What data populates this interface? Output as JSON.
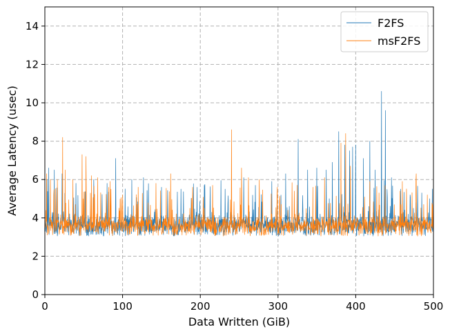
{
  "chart_data": {
    "type": "line",
    "xlabel": "Data Written (GiB)",
    "ylabel": "Average Latency (usec)",
    "xlim": [
      0,
      500
    ],
    "ylim": [
      0,
      15
    ],
    "xticks": [
      0,
      100,
      200,
      300,
      400,
      500
    ],
    "yticks": [
      0,
      2,
      4,
      6,
      8,
      10,
      12,
      14
    ],
    "xtick_labels": [
      "0",
      "100",
      "200",
      "300",
      "400",
      "500"
    ],
    "ytick_labels": [
      "0",
      "2",
      "4",
      "6",
      "8",
      "10",
      "12",
      "14"
    ],
    "grid": true,
    "grid_style": "dashed",
    "legend_position": "top-right",
    "series": [
      {
        "name": "F2FS",
        "color": "#1f77b4",
        "x_range": [
          0,
          500
        ],
        "baseline": [
          3.0,
          4.8
        ],
        "spikes": [
          [
            3,
            6.0
          ],
          [
            5,
            6.6
          ],
          [
            12,
            6.5
          ],
          [
            22,
            6.3
          ],
          [
            40,
            5.8
          ],
          [
            63,
            6.0
          ],
          [
            80,
            5.8
          ],
          [
            91,
            7.1
          ],
          [
            112,
            6.0
          ],
          [
            127,
            6.1
          ],
          [
            150,
            5.6
          ],
          [
            175,
            5.5
          ],
          [
            205,
            5.7
          ],
          [
            232,
            5.5
          ],
          [
            256,
            6.1
          ],
          [
            271,
            5.7
          ],
          [
            292,
            5.9
          ],
          [
            310,
            6.3
          ],
          [
            326,
            8.1
          ],
          [
            338,
            6.5
          ],
          [
            350,
            6.6
          ],
          [
            362,
            6.5
          ],
          [
            370,
            6.9
          ],
          [
            378,
            8.5
          ],
          [
            386,
            7.8
          ],
          [
            392,
            7.5
          ],
          [
            396,
            7.7
          ],
          [
            400,
            7.8
          ],
          [
            410,
            7.1
          ],
          [
            418,
            8.0
          ],
          [
            425,
            6.5
          ],
          [
            433,
            10.6
          ],
          [
            438,
            9.6
          ],
          [
            446,
            6.1
          ],
          [
            458,
            5.5
          ],
          [
            470,
            5.2
          ],
          [
            485,
            5.3
          ],
          [
            495,
            5.0
          ]
        ]
      },
      {
        "name": "msF2FS",
        "color": "#ff7f0e",
        "x_range": [
          0,
          500
        ],
        "baseline": [
          3.0,
          4.6
        ],
        "spikes": [
          [
            2,
            6.3
          ],
          [
            7,
            6.0
          ],
          [
            16,
            6.0
          ],
          [
            23,
            8.2
          ],
          [
            26,
            6.5
          ],
          [
            36,
            6.0
          ],
          [
            48,
            7.3
          ],
          [
            53,
            7.2
          ],
          [
            60,
            6.2
          ],
          [
            68,
            6.1
          ],
          [
            84,
            5.9
          ],
          [
            100,
            5.2
          ],
          [
            120,
            5.6
          ],
          [
            143,
            5.8
          ],
          [
            162,
            6.3
          ],
          [
            190,
            5.6
          ],
          [
            216,
            5.7
          ],
          [
            240,
            8.6
          ],
          [
            253,
            6.6
          ],
          [
            262,
            6.1
          ],
          [
            276,
            6.0
          ],
          [
            299,
            5.6
          ],
          [
            321,
            5.4
          ],
          [
            345,
            5.6
          ],
          [
            360,
            6.1
          ],
          [
            381,
            7.9
          ],
          [
            387,
            8.4
          ],
          [
            393,
            6.7
          ],
          [
            418,
            5.9
          ],
          [
            430,
            5.3
          ],
          [
            460,
            5.9
          ],
          [
            478,
            6.3
          ],
          [
            492,
            5.2
          ]
        ]
      }
    ]
  }
}
